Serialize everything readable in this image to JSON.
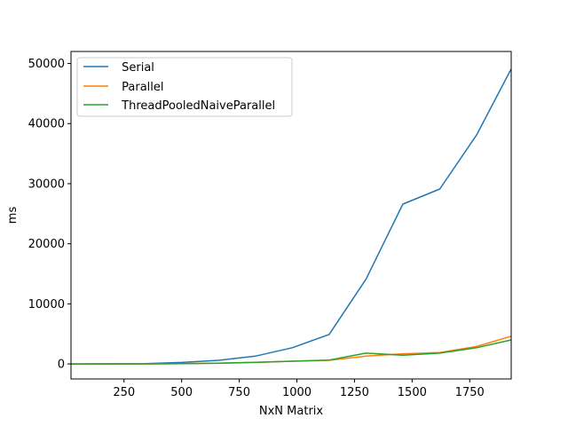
{
  "chart_data": {
    "type": "line",
    "title": "",
    "xlabel": "NxN Matrix",
    "ylabel": "ms",
    "xlim": [
      20,
      1930
    ],
    "ylim": [
      -2500,
      52000
    ],
    "xticks": [
      250,
      500,
      750,
      1000,
      1250,
      1500,
      1750
    ],
    "xtick_labels": [
      "250",
      "500",
      "750",
      "1000",
      "1250",
      "1500",
      "1750"
    ],
    "yticks": [
      0,
      10000,
      20000,
      30000,
      40000,
      50000
    ],
    "ytick_labels": [
      "0",
      "10000",
      "20000",
      "30000",
      "40000",
      "50000"
    ],
    "grid": false,
    "legend_position": "top-left",
    "x": [
      20,
      180,
      340,
      500,
      660,
      820,
      980,
      1140,
      1300,
      1460,
      1620,
      1780,
      1930
    ],
    "series": [
      {
        "name": " Serial",
        "color": "#1f77b4",
        "values": [
          0,
          10,
          40,
          250,
          600,
          1300,
          2700,
          4900,
          14100,
          26600,
          29100,
          38100,
          49100
        ]
      },
      {
        "name": " Parallel",
        "color": "#ff7f0e",
        "values": [
          0,
          5,
          15,
          60,
          120,
          250,
          450,
          600,
          1300,
          1700,
          1900,
          2900,
          4600
        ]
      },
      {
        "name": " ThreadPooledNaiveParallel",
        "color": "#2ca02c",
        "values": [
          0,
          5,
          15,
          60,
          130,
          260,
          450,
          650,
          1800,
          1450,
          1800,
          2700,
          4000
        ]
      }
    ]
  }
}
